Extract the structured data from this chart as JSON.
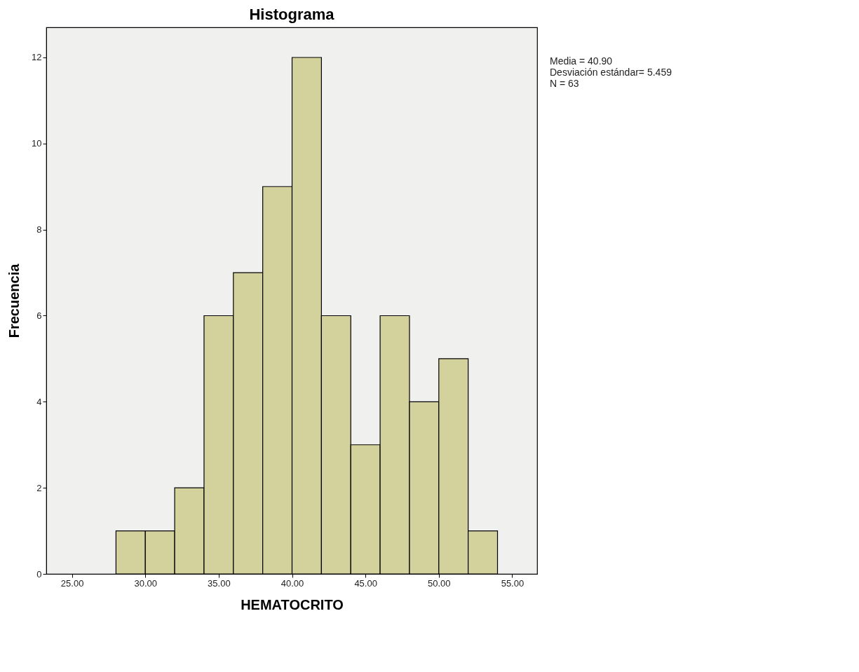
{
  "chart_data": {
    "type": "histogram",
    "title": "Histograma",
    "xlabel": "HEMATOCRITO",
    "ylabel": "Frecuencia",
    "bins": [
      28,
      30,
      32,
      34,
      36,
      38,
      40,
      42,
      44,
      46,
      48,
      50,
      52,
      54
    ],
    "values": [
      1,
      1,
      2,
      6,
      7,
      9,
      12,
      6,
      3,
      6,
      4,
      5,
      1
    ],
    "color": "#d4d29c",
    "xlim": [
      23.25,
      56.7
    ],
    "xticks": [
      {
        "value": 25,
        "label": "25.00"
      },
      {
        "value": 30,
        "label": "30.00"
      },
      {
        "value": 35,
        "label": "35.00"
      },
      {
        "value": 40,
        "label": "40.00"
      },
      {
        "value": 45,
        "label": "45.00"
      },
      {
        "value": 50,
        "label": "50.00"
      },
      {
        "value": 55,
        "label": "55.00"
      }
    ],
    "ylim": [
      0,
      12.7
    ],
    "yticks": [
      0,
      2,
      4,
      6,
      8,
      10,
      12
    ],
    "grid": false,
    "annotations": [
      "Media = 40.90",
      "Desviación estándar= 5.459",
      "N = 63"
    ]
  }
}
